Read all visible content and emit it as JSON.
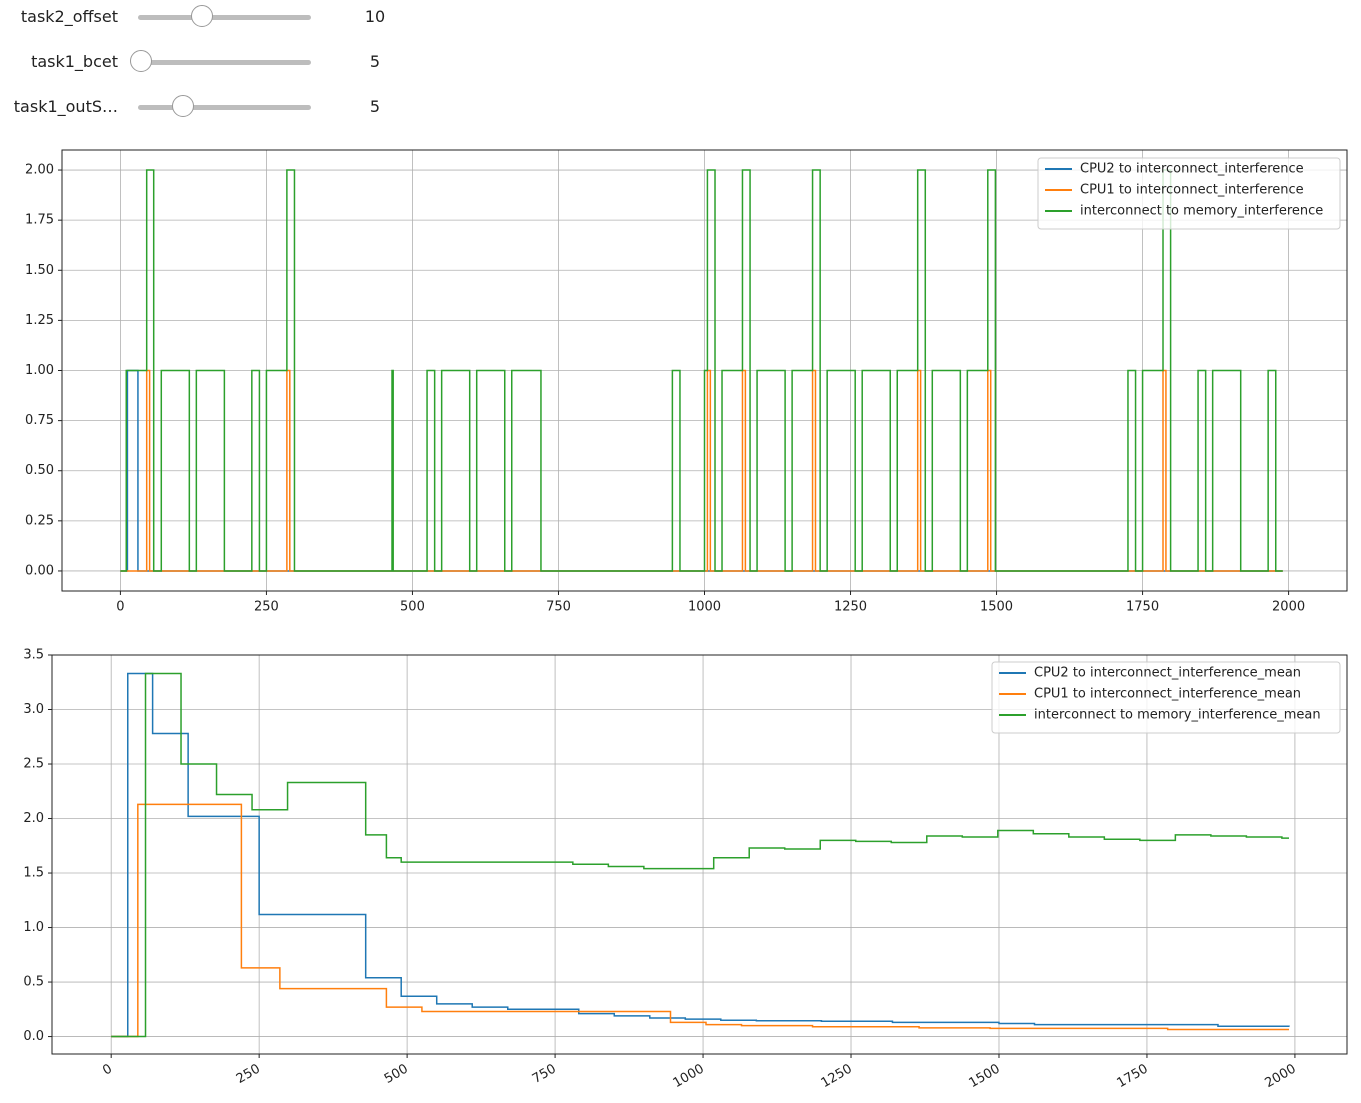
{
  "sliders": [
    {
      "label": "task2_offset",
      "value": 10
    },
    {
      "label": "task1_bcet",
      "value": 5
    },
    {
      "label": "task1_outS…",
      "value": 5
    }
  ],
  "chart_data": [
    {
      "type": "line",
      "step": true,
      "xlim": [
        -100,
        2100
      ],
      "ylim": [
        -0.1,
        2.1
      ],
      "xticks": [
        0,
        250,
        500,
        750,
        1000,
        1250,
        1500,
        1750,
        2000
      ],
      "yticks": [
        {
          "value": 0,
          "label": "0.00"
        },
        {
          "value": 0.25,
          "label": "0.25"
        },
        {
          "value": 0.5,
          "label": "0.50"
        },
        {
          "value": 0.75,
          "label": "0.75"
        },
        {
          "value": 1,
          "label": "1.00"
        },
        {
          "value": 1.25,
          "label": "1.25"
        },
        {
          "value": 1.5,
          "label": "1.50"
        },
        {
          "value": 1.75,
          "label": "1.75"
        },
        {
          "value": 2,
          "label": "2.00"
        }
      ],
      "grid": true,
      "legend": "upper right",
      "series": [
        {
          "name": "CPU2 to interconnect_interference",
          "color": "#1f77b4",
          "x": [
            0,
            12,
            30,
            1990
          ],
          "values": [
            0,
            1,
            0,
            0
          ]
        },
        {
          "name": "CPU1 to interconnect_interference",
          "color": "#ff7f0e",
          "x": [
            0,
            45,
            50,
            285,
            290,
            1005,
            1010,
            1065,
            1070,
            1185,
            1190,
            1365,
            1370,
            1485,
            1490,
            1785,
            1790,
            1990
          ],
          "values": [
            0,
            1,
            0,
            1,
            0,
            1,
            0,
            1,
            0,
            1,
            0,
            1,
            0,
            1,
            0,
            1,
            0,
            0
          ]
        },
        {
          "name": "interconnect to memory_interference",
          "color": "#2ca02c",
          "x": [
            0,
            10,
            45,
            57,
            70,
            118,
            130,
            178,
            225,
            238,
            250,
            285,
            298,
            465,
            467,
            525,
            538,
            550,
            598,
            610,
            658,
            670,
            720,
            945,
            958,
            1000,
            1005,
            1018,
            1030,
            1065,
            1078,
            1090,
            1138,
            1150,
            1185,
            1198,
            1210,
            1258,
            1270,
            1318,
            1330,
            1365,
            1378,
            1390,
            1438,
            1450,
            1485,
            1498,
            1725,
            1738,
            1750,
            1785,
            1798,
            1845,
            1858,
            1870,
            1918,
            1965,
            1978,
            1990
          ],
          "values": [
            0,
            1,
            2,
            0,
            1,
            0,
            1,
            0,
            1,
            0,
            1,
            2,
            0,
            1,
            0,
            1,
            0,
            1,
            0,
            1,
            0,
            1,
            0,
            1,
            0,
            1,
            2,
            0,
            1,
            2,
            0,
            1,
            0,
            1,
            2,
            0,
            1,
            0,
            1,
            0,
            1,
            2,
            0,
            1,
            0,
            1,
            2,
            0,
            1,
            0,
            1,
            2,
            0,
            1,
            0,
            1,
            0,
            1,
            0,
            0
          ]
        }
      ]
    },
    {
      "type": "line",
      "step": true,
      "xlim": [
        -100,
        2088
      ],
      "ylim": [
        -0.16,
        3.5
      ],
      "xticks": [
        0,
        250,
        500,
        750,
        1000,
        1250,
        1500,
        1750,
        2000
      ],
      "yticks": [
        {
          "value": 0,
          "label": "0.0"
        },
        {
          "value": 0.5,
          "label": "0.5"
        },
        {
          "value": 1,
          "label": "1.0"
        },
        {
          "value": 1.5,
          "label": "1.5"
        },
        {
          "value": 2,
          "label": "2.0"
        },
        {
          "value": 2.5,
          "label": "2.5"
        },
        {
          "value": 3,
          "label": "3.0"
        },
        {
          "value": 3.5,
          "label": "3.5"
        }
      ],
      "grid": true,
      "legend": "upper right",
      "xtick_rotation": 30,
      "series": [
        {
          "name": "CPU2 to interconnect_interference_mean",
          "color": "#1f77b4",
          "x": [
            0,
            28,
            70,
            130,
            250,
            430,
            490,
            550,
            610,
            670,
            790,
            850,
            910,
            970,
            1030,
            1090,
            1200,
            1320,
            1500,
            1560,
            1870,
            1990
          ],
          "values": [
            0,
            3.33,
            2.78,
            2.02,
            1.12,
            0.54,
            0.37,
            0.3,
            0.27,
            0.25,
            0.21,
            0.19,
            0.17,
            0.16,
            0.15,
            0.145,
            0.14,
            0.13,
            0.12,
            0.11,
            0.095,
            0.09
          ]
        },
        {
          "name": "CPU1 to interconnect_interference_mean",
          "color": "#ff7f0e",
          "x": [
            0,
            45,
            220,
            285,
            465,
            525,
            945,
            1005,
            1065,
            1185,
            1365,
            1485,
            1785,
            1990
          ],
          "values": [
            0,
            2.13,
            0.63,
            0.44,
            0.27,
            0.23,
            0.13,
            0.11,
            0.1,
            0.09,
            0.08,
            0.075,
            0.065,
            0.065
          ]
        },
        {
          "name": "interconnect to memory_interference_mean",
          "color": "#2ca02c",
          "x": [
            0,
            58,
            118,
            178,
            238,
            298,
            430,
            465,
            490,
            780,
            840,
            900,
            1018,
            1078,
            1138,
            1198,
            1258,
            1318,
            1378,
            1438,
            1498,
            1558,
            1618,
            1678,
            1738,
            1798,
            1858,
            1918,
            1978,
            1990
          ],
          "values": [
            0,
            3.33,
            2.5,
            2.22,
            2.08,
            2.33,
            1.85,
            1.64,
            1.6,
            1.58,
            1.56,
            1.54,
            1.64,
            1.73,
            1.72,
            1.8,
            1.79,
            1.78,
            1.84,
            1.83,
            1.89,
            1.86,
            1.83,
            1.81,
            1.8,
            1.85,
            1.84,
            1.83,
            1.82,
            1.82
          ]
        }
      ]
    }
  ]
}
